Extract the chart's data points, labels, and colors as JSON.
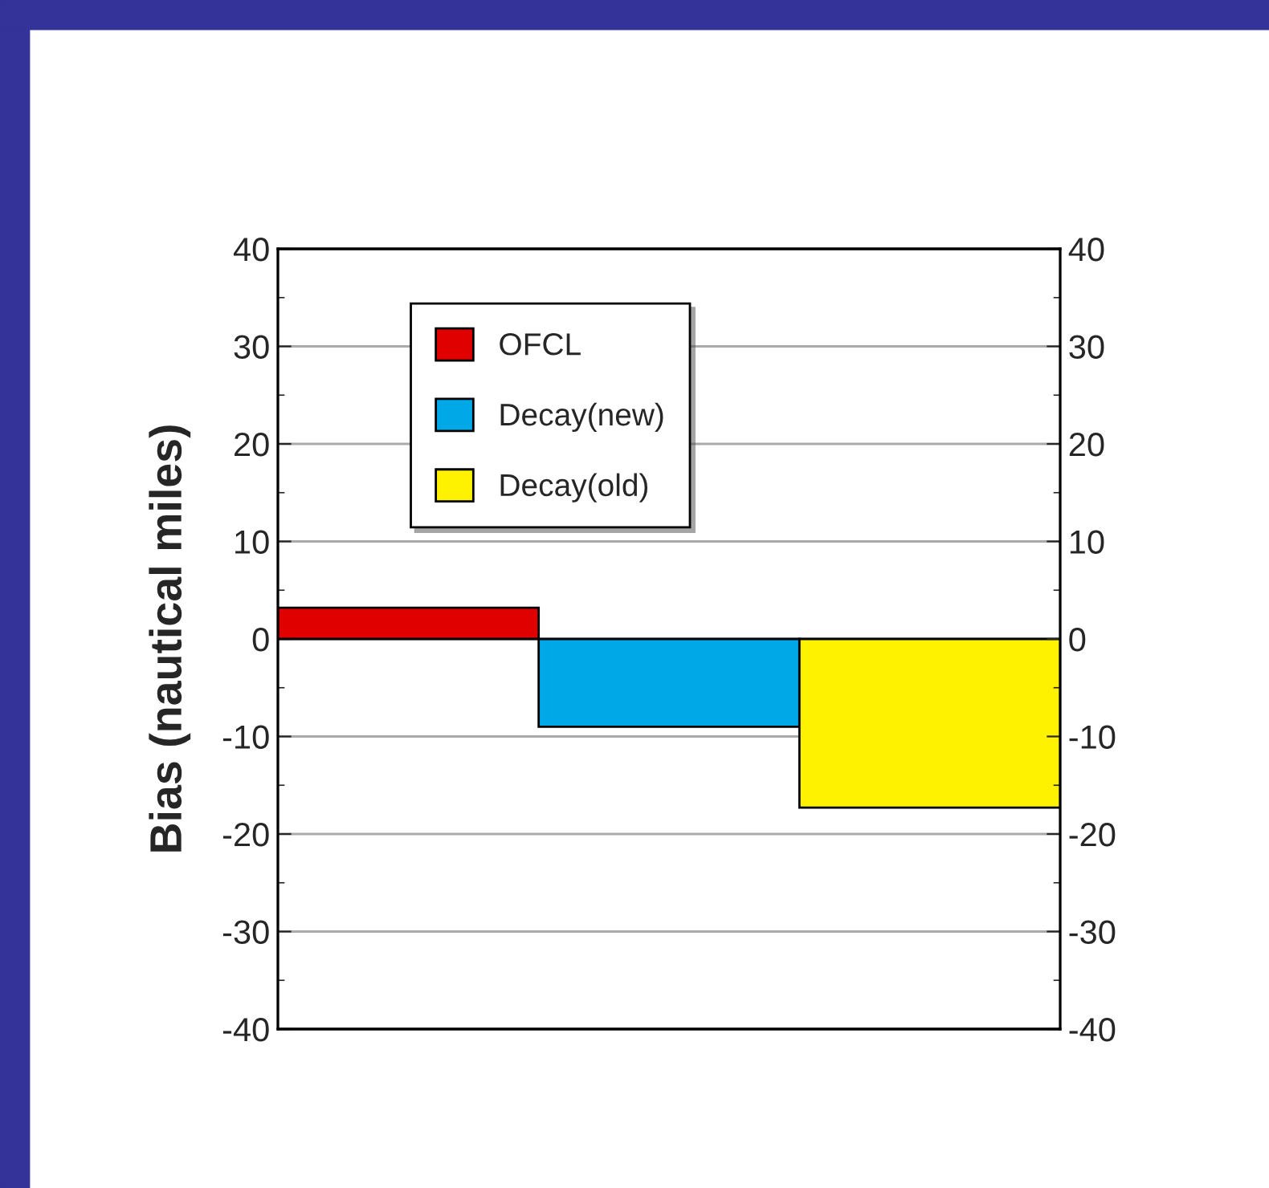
{
  "chart_data": {
    "type": "bar",
    "ylabel": "Bias (nautical miles)",
    "categories": [
      null,
      null,
      null
    ],
    "series": [
      {
        "name": "OFCL",
        "color": "#e00000",
        "values": [
          3.2,
          null,
          null
        ]
      },
      {
        "name": "Decay(new)",
        "color": "#00a8e8",
        "values": [
          null,
          -9.0,
          null
        ]
      },
      {
        "name": "Decay(old)",
        "color": "#fff200",
        "values": [
          null,
          null,
          -17.3
        ]
      }
    ],
    "ylim": [
      -40,
      40
    ],
    "yticks": [
      -40,
      -30,
      -20,
      -10,
      0,
      10,
      20,
      30,
      40
    ],
    "y2lim": [
      -40,
      40
    ],
    "y2ticks": [
      -40,
      -30,
      -20,
      -10,
      0,
      10,
      20,
      30,
      40
    ],
    "grid": "y",
    "legend": "top left"
  }
}
